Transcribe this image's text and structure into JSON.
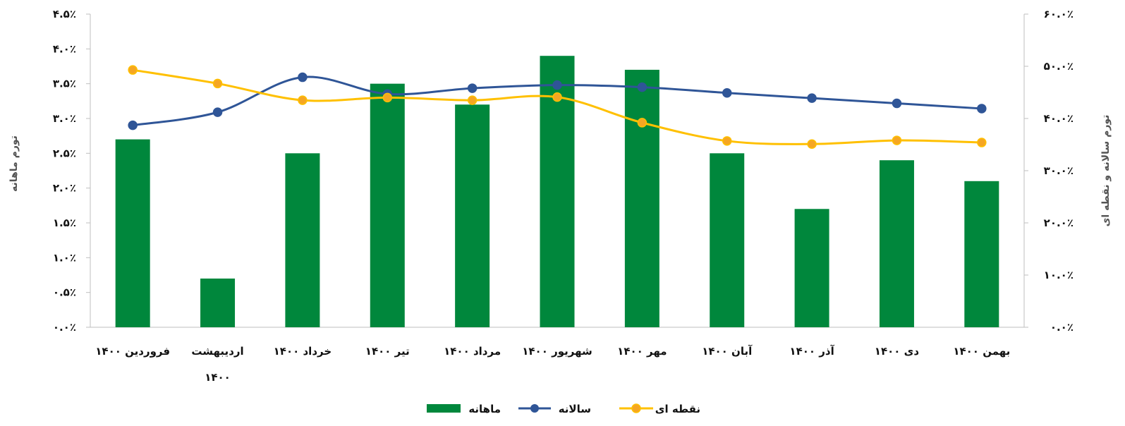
{
  "chart_data": {
    "type": "bar",
    "categories": [
      [
        "فروردین ۱۴۰۰"
      ],
      [
        "اردیبهشت",
        "۱۴۰۰"
      ],
      [
        "خرداد ۱۴۰۰"
      ],
      [
        "تیر ۱۴۰۰"
      ],
      [
        "مرداد ۱۴۰۰"
      ],
      [
        "شهریور ۱۴۰۰"
      ],
      [
        "مهر ۱۴۰۰"
      ],
      [
        "آبان ۱۴۰۰"
      ],
      [
        "آذر ۱۴۰۰"
      ],
      [
        "دی ۱۴۰۰"
      ],
      [
        "بهمن ۱۴۰۰"
      ]
    ],
    "series": [
      {
        "name": "ماهانه",
        "kind": "bar",
        "axis": "left",
        "color": "#00873C",
        "values": [
          2.7,
          0.7,
          2.5,
          3.5,
          3.2,
          3.9,
          3.7,
          2.5,
          1.7,
          2.4,
          2.1
        ]
      },
      {
        "name": "سالانه",
        "kind": "line",
        "axis": "right",
        "color": "#2F5597",
        "values": [
          38.7,
          41.2,
          47.9,
          44.7,
          45.8,
          46.4,
          46.0,
          44.9,
          43.9,
          42.9,
          41.9
        ]
      },
      {
        "name": "نقطه ای",
        "kind": "line",
        "axis": "right",
        "color": "#FFC000",
        "marker_fill": "#F5A623",
        "values": [
          49.3,
          46.7,
          43.5,
          44.0,
          43.5,
          44.1,
          39.2,
          35.7,
          35.1,
          35.8,
          35.4
        ]
      }
    ],
    "left_axis": {
      "title": "تورم ماهانه",
      "ylim": [
        0,
        4.5
      ],
      "ticks": [
        0,
        0.5,
        1,
        1.5,
        2,
        2.5,
        3,
        3.5,
        4,
        4.5
      ],
      "tick_labels": [
        "۰.۰٪",
        "۰.۵٪",
        "۱.۰٪",
        "۱.۵٪",
        "۲.۰٪",
        "۲.۵٪",
        "۳.۰٪",
        "۳.۵٪",
        "۴.۰٪",
        "۴.۵٪"
      ]
    },
    "right_axis": {
      "title": "تورم سالانه و نقطه ای",
      "ylim": [
        0,
        60
      ],
      "ticks": [
        0,
        10,
        20,
        30,
        40,
        50,
        60
      ],
      "tick_labels": [
        "۰.۰٪",
        "۱۰.۰٪",
        "۲۰.۰٪",
        "۳۰.۰٪",
        "۴۰.۰٪",
        "۵۰.۰٪",
        "۶۰.۰٪"
      ]
    },
    "grid": false,
    "legend": "bottom-center"
  }
}
